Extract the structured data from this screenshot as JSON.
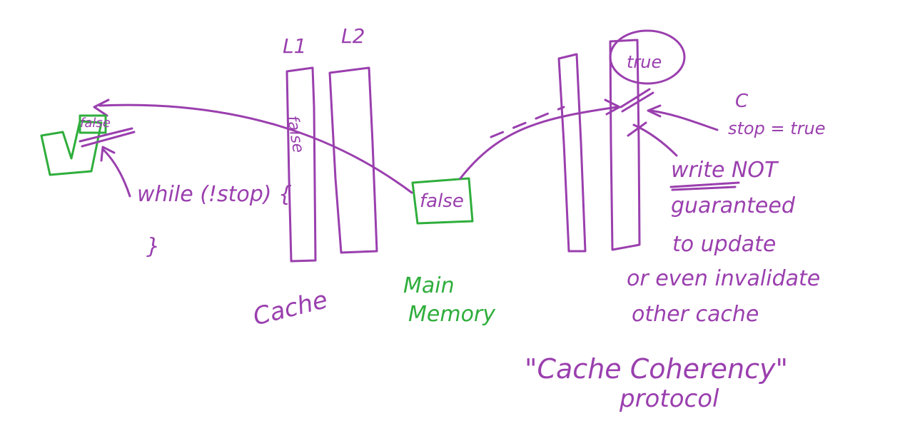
{
  "colors": {
    "ink": "#9a3fae",
    "green": "#2fae3c",
    "background": "#ffffff"
  },
  "labels": {
    "l1": "L1",
    "l2": "L2",
    "cache": "Cache",
    "main_memory_line1": "Main",
    "main_memory_line2": "Memory",
    "false_cell": "false",
    "false_cached_left": "false",
    "true_circled": "true",
    "stop_assign_c": "C",
    "stop_assign": "stop = true",
    "while_loop": "while (!stop) {",
    "closing_brace": "}",
    "note_line1": "write NOT",
    "note_line2": "guaranteed",
    "note_line3": "to update",
    "note_line4": "or even invalidate",
    "note_line5": "other cache",
    "protocol_line1": "\"Cache Coherency\"",
    "protocol_line2": "protocol"
  }
}
